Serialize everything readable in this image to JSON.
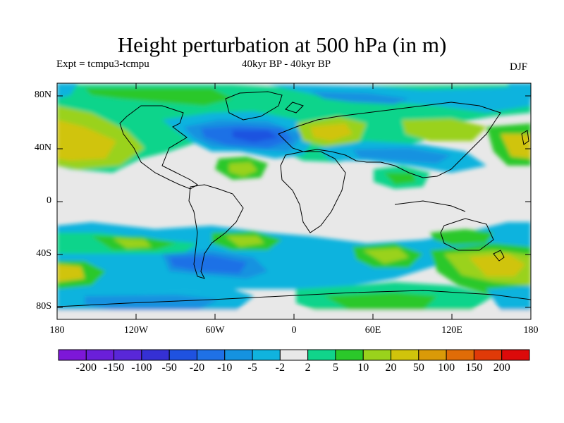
{
  "title": "Height perturbation at 500 hPa (in m)",
  "experiment": "Expt = tcmpu3-tcmpu",
  "period": "40kyr BP - 40kyr BP",
  "season": "DJF",
  "lat_labels": [
    "80N",
    "40N",
    "0",
    "40S",
    "80S"
  ],
  "lon_labels": [
    "180",
    "120W",
    "60W",
    "0",
    "60E",
    "120E",
    "180"
  ],
  "colorbar": {
    "labels": [
      "-200",
      "-150",
      "-100",
      "-50",
      "-20",
      "-10",
      "-5",
      "-2",
      "2",
      "5",
      "10",
      "20",
      "50",
      "100",
      "150",
      "200"
    ],
    "colors": [
      "#7d17d8",
      "#6a1fd9",
      "#5927d8",
      "#3530d4",
      "#1f52e0",
      "#1f71e6",
      "#1592e0",
      "#10b3de",
      "#e8e8e8",
      "#11d48b",
      "#2bc82a",
      "#9ad21c",
      "#d0c40b",
      "#da9a08",
      "#e06c07",
      "#e03a08",
      "#dc0a0a"
    ]
  },
  "colors": {
    "land_outline": "#000000",
    "background": "#e8e8e8"
  }
}
